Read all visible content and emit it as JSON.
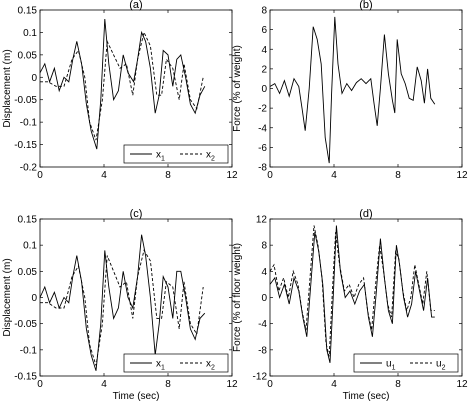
{
  "chart_data": [
    {
      "type": "line",
      "title": "(a)",
      "xlabel": "",
      "ylabel": "Displacement (m)",
      "xlim": [
        0,
        12
      ],
      "ylim": [
        -0.2,
        0.15
      ],
      "xticks": [
        "0",
        "4",
        "8",
        "12"
      ],
      "yticks": [
        "-0.2",
        "-0.15",
        "-0.1",
        "-0.05",
        "0",
        "0.05",
        "0.1",
        "0.15"
      ],
      "legend": {
        "position": "bottom-right",
        "entries": [
          "x",
          "x"
        ],
        "subscripts": [
          "1",
          "2"
        ]
      },
      "series": [
        {
          "label_index": 0,
          "style": "solid",
          "x": [
            0,
            0.3,
            0.6,
            0.9,
            1.2,
            1.5,
            1.8,
            2.05,
            2.3,
            2.6,
            2.9,
            3.2,
            3.55,
            3.8,
            4.05,
            4.3,
            4.6,
            4.9,
            5.2,
            5.5,
            5.85,
            6.1,
            6.35,
            6.6,
            6.9,
            7.2,
            7.45,
            7.7,
            8.0,
            8.3,
            8.55,
            8.8,
            9.1,
            9.4,
            9.7,
            10.0,
            10.3
          ],
          "y": [
            0.01,
            0.03,
            -0.01,
            0.02,
            -0.03,
            0.0,
            -0.01,
            0.04,
            0.08,
            0.03,
            -0.06,
            -0.12,
            -0.16,
            -0.05,
            0.13,
            0.03,
            -0.05,
            -0.03,
            0.05,
            0.01,
            -0.01,
            0.04,
            0.1,
            0.08,
            0.02,
            -0.08,
            -0.04,
            0.06,
            0.05,
            -0.02,
            0.04,
            0.05,
            0.0,
            -0.06,
            -0.08,
            -0.04,
            -0.02
          ]
        },
        {
          "label_index": 1,
          "style": "dashed",
          "x": [
            0,
            0.5,
            1.0,
            1.5,
            2.0,
            2.4,
            2.8,
            3.1,
            3.5,
            3.9,
            4.2,
            4.6,
            5.0,
            5.4,
            5.8,
            6.1,
            6.5,
            6.9,
            7.3,
            7.6,
            7.9,
            8.3,
            8.7,
            9.0,
            9.4,
            9.8,
            10.2
          ],
          "y": [
            -0.01,
            -0.01,
            -0.02,
            -0.02,
            0.04,
            0.06,
            0.0,
            -0.1,
            -0.14,
            -0.05,
            0.08,
            0.05,
            0.02,
            0.03,
            -0.04,
            0.04,
            0.1,
            0.07,
            -0.04,
            -0.04,
            0.04,
            0.02,
            -0.05,
            0.03,
            -0.05,
            -0.07,
            0.0
          ]
        }
      ]
    },
    {
      "type": "line",
      "title": "(b)",
      "xlabel": "",
      "ylabel": "Force (% of weight)",
      "xlim": [
        0,
        12
      ],
      "ylim": [
        -8,
        8
      ],
      "xticks": [
        "0",
        "4",
        "8",
        "12"
      ],
      "yticks": [
        "-8",
        "-6",
        "-4",
        "-2",
        "0",
        "2",
        "4",
        "6",
        "8"
      ],
      "series": [
        {
          "style": "solid",
          "x": [
            0,
            0.3,
            0.6,
            0.9,
            1.2,
            1.5,
            1.8,
            2.0,
            2.2,
            2.45,
            2.7,
            2.95,
            3.2,
            3.45,
            3.7,
            3.85,
            4.05,
            4.25,
            4.5,
            4.8,
            5.1,
            5.4,
            5.7,
            6.0,
            6.3,
            6.5,
            6.7,
            6.9,
            7.15,
            7.4,
            7.65,
            7.8,
            7.95,
            8.2,
            8.45,
            8.7,
            8.95,
            9.2,
            9.45,
            9.65,
            9.85,
            10.05,
            10.3
          ],
          "y": [
            0.2,
            0.5,
            -0.5,
            0.8,
            -0.8,
            1.0,
            0.2,
            -2.0,
            -4.3,
            0.0,
            6.3,
            5.0,
            2.5,
            -5.0,
            -7.6,
            -0.5,
            7.3,
            2.5,
            -0.5,
            0.5,
            -0.2,
            0.6,
            1.0,
            0.5,
            1.0,
            -1.5,
            -3.8,
            0.0,
            5.5,
            1.5,
            -1.2,
            -2.5,
            5.0,
            1.5,
            0.5,
            -1.0,
            -1.2,
            2.2,
            0.8,
            -1.5,
            2.0,
            -1.0,
            -1.6
          ]
        }
      ]
    },
    {
      "type": "line",
      "title": "(c)",
      "xlabel": "Time (sec)",
      "ylabel": "Displacement (m)",
      "xlim": [
        0,
        12
      ],
      "ylim": [
        -0.15,
        0.15
      ],
      "xticks": [
        "0",
        "4",
        "8",
        "12"
      ],
      "yticks": [
        "-0.15",
        "-0.1",
        "-0.05",
        "0",
        "0.05",
        "0.1",
        "0.15"
      ],
      "legend": {
        "position": "bottom-right",
        "entries": [
          "x",
          "x"
        ],
        "subscripts": [
          "1",
          "2"
        ]
      },
      "series": [
        {
          "label_index": 0,
          "style": "solid",
          "x": [
            0,
            0.3,
            0.6,
            0.9,
            1.2,
            1.5,
            1.8,
            2.05,
            2.3,
            2.6,
            2.9,
            3.2,
            3.5,
            3.8,
            4.05,
            4.3,
            4.6,
            4.9,
            5.2,
            5.5,
            5.8,
            6.1,
            6.35,
            6.6,
            6.9,
            7.2,
            7.45,
            7.7,
            8.0,
            8.3,
            8.55,
            8.8,
            9.1,
            9.4,
            9.7,
            10.0,
            10.3
          ],
          "y": [
            0.0,
            0.02,
            -0.01,
            0.01,
            -0.02,
            0.0,
            -0.01,
            0.04,
            0.08,
            0.03,
            -0.06,
            -0.11,
            -0.14,
            -0.05,
            0.09,
            0.02,
            -0.04,
            -0.02,
            0.05,
            0.0,
            -0.02,
            0.04,
            0.12,
            0.08,
            0.0,
            -0.11,
            -0.05,
            0.04,
            0.02,
            -0.04,
            0.05,
            0.05,
            0.0,
            -0.06,
            -0.08,
            -0.04,
            -0.03
          ]
        },
        {
          "label_index": 1,
          "style": "dashed",
          "x": [
            0,
            0.5,
            1.0,
            1.5,
            2.0,
            2.4,
            2.8,
            3.1,
            3.5,
            3.9,
            4.2,
            4.6,
            5.0,
            5.4,
            5.8,
            6.1,
            6.5,
            6.9,
            7.3,
            7.6,
            7.9,
            8.3,
            8.7,
            9.0,
            9.4,
            9.8,
            10.2
          ],
          "y": [
            -0.01,
            -0.01,
            -0.02,
            -0.02,
            0.04,
            0.06,
            0.0,
            -0.09,
            -0.13,
            -0.05,
            0.08,
            0.05,
            0.02,
            0.03,
            -0.04,
            0.04,
            0.09,
            0.07,
            -0.04,
            -0.04,
            0.03,
            0.02,
            -0.06,
            0.03,
            -0.05,
            -0.07,
            0.02
          ]
        }
      ]
    },
    {
      "type": "line",
      "title": "(d)",
      "xlabel": "Time (sec)",
      "ylabel": "Force (% of floor weight)",
      "xlim": [
        0,
        12
      ],
      "ylim": [
        -12,
        12
      ],
      "xticks": [
        "0",
        "4",
        "8",
        "12"
      ],
      "yticks": [
        "-12",
        "-8",
        "-4",
        "0",
        "4",
        "8",
        "12"
      ],
      "legend": {
        "position": "bottom-right",
        "entries": [
          "u",
          "u"
        ],
        "subscripts": [
          "1",
          "2"
        ]
      },
      "series": [
        {
          "label_index": 0,
          "style": "solid",
          "x": [
            0,
            0.3,
            0.6,
            0.9,
            1.2,
            1.5,
            1.8,
            2.05,
            2.3,
            2.55,
            2.8,
            3.05,
            3.3,
            3.55,
            3.75,
            3.95,
            4.15,
            4.4,
            4.7,
            5.0,
            5.3,
            5.6,
            5.9,
            6.15,
            6.4,
            6.65,
            6.9,
            7.15,
            7.4,
            7.65,
            7.9,
            8.1,
            8.35,
            8.6,
            8.85,
            9.1,
            9.35,
            9.6,
            9.85,
            10.1,
            10.3
          ],
          "y": [
            2,
            3,
            0,
            2,
            -1,
            3,
            1,
            -3,
            -6,
            2,
            10,
            7,
            2,
            -8,
            -10,
            0,
            11,
            4,
            0,
            1,
            -1,
            1,
            2,
            -3,
            -6,
            1,
            9,
            3,
            -2,
            -4,
            8,
            5,
            0,
            -3,
            -1,
            4,
            1,
            -2,
            3,
            -3,
            -3
          ]
        },
        {
          "label_index": 1,
          "style": "dashed",
          "x": [
            0,
            0.25,
            0.55,
            0.85,
            1.15,
            1.45,
            1.75,
            2.0,
            2.25,
            2.5,
            2.75,
            3.0,
            3.25,
            3.5,
            3.7,
            3.9,
            4.1,
            4.35,
            4.65,
            4.95,
            5.25,
            5.55,
            5.85,
            6.1,
            6.35,
            6.6,
            6.85,
            7.1,
            7.35,
            7.6,
            7.85,
            8.05,
            8.3,
            8.55,
            8.8,
            9.05,
            9.3,
            9.55,
            9.8,
            10.05,
            10.3
          ],
          "y": [
            4,
            5,
            1,
            3,
            0,
            4,
            2,
            -2,
            -5,
            3,
            11,
            8,
            3,
            -7,
            -9,
            1,
            10,
            5,
            1,
            2,
            0,
            2,
            3,
            -2,
            -5,
            2,
            8,
            4,
            -1,
            -3,
            7,
            6,
            1,
            -2,
            0,
            5,
            2,
            -1,
            4,
            -2,
            -2
          ]
        }
      ]
    }
  ]
}
